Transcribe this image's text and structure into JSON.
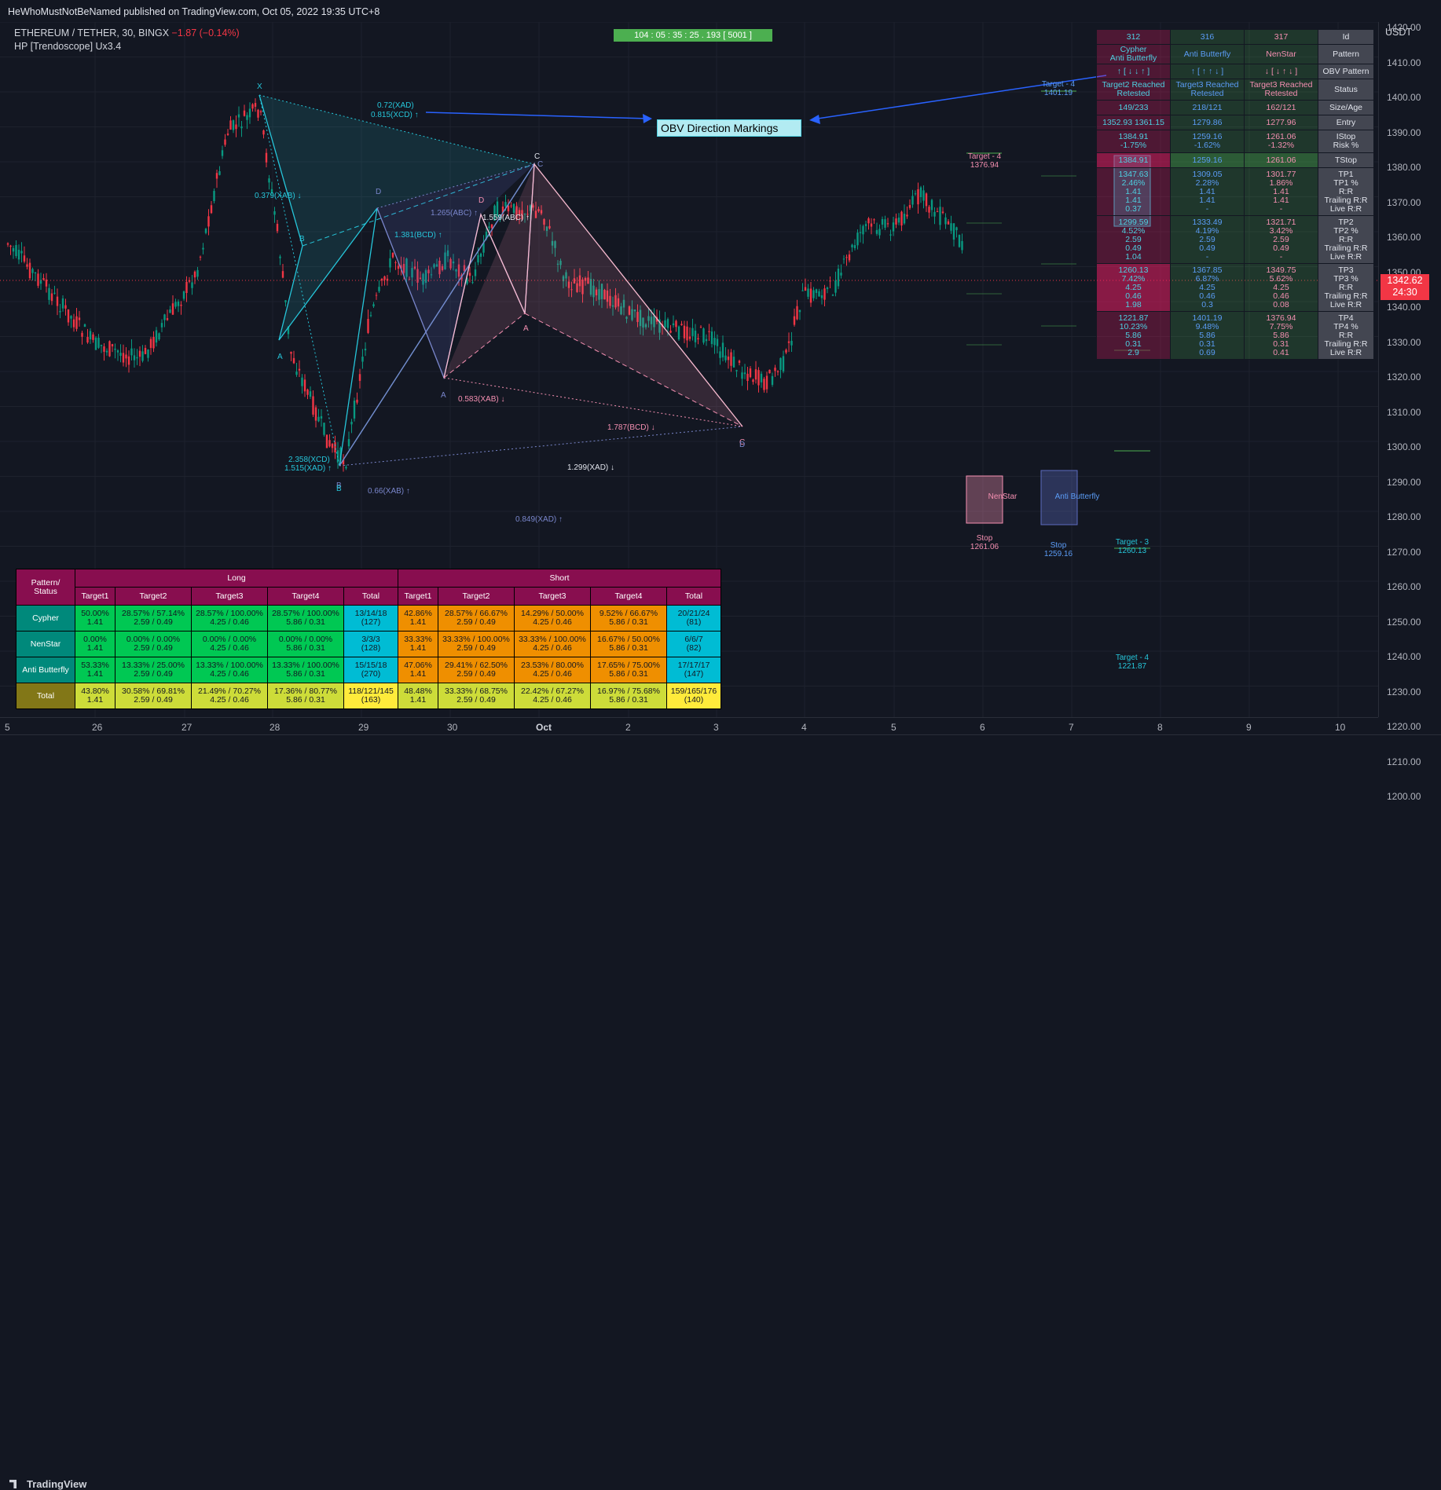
{
  "publisher": "HeWhoMustNotBeNamed published on TradingView.com, Oct 05, 2022 19:35 UTC+8",
  "symbol": {
    "name": "ETHEREUM / TETHER, 30, BINGX",
    "change": "−1.87 (−0.14%)"
  },
  "indicator_name": "HP [Trendoscope] Ux3.4",
  "timer": "104 : 05 : 35 : 25 . 193 [ 5001 ]",
  "obv_label": "OBV Direction Markings",
  "currency": "USDT",
  "price_labels": [
    "1420.00",
    "1410.00",
    "1400.00",
    "1390.00",
    "1380.00",
    "1370.00",
    "1360.00",
    "1350.00",
    "1340.00",
    "1330.00",
    "1320.00",
    "1310.00",
    "1300.00",
    "1290.00",
    "1280.00",
    "1270.00",
    "1260.00",
    "1250.00",
    "1240.00",
    "1230.00",
    "1220.00",
    "1210.00",
    "1200.00"
  ],
  "current_price": {
    "value": "1342.62",
    "countdown": "24:30"
  },
  "time_labels": [
    "5",
    "26",
    "27",
    "28",
    "29",
    "30",
    "Oct",
    "2",
    "3",
    "4",
    "5",
    "6",
    "7",
    "8",
    "9",
    "10"
  ],
  "brand": "TradingView",
  "chart_annotations": {
    "pivots": [
      "X",
      "A",
      "B",
      "C",
      "D",
      "A",
      "B",
      "C",
      "D",
      "A",
      "B",
      "C",
      "D"
    ],
    "ratios": [
      "0.72(XAD)",
      "0.815(XCD) ↑",
      "0.379(XAB) ↓",
      "1.265(ABC) ↑",
      "1.559(ABC) ↑",
      "1.381(BCD) ↑",
      "0.583(XAB) ↓",
      "1.787(BCD) ↓",
      "2.358(XCD)",
      "1.515(XAD) ↑",
      "0.66(XAB) ↑",
      "1.299(XAD) ↓",
      "0.849(XAD) ↑"
    ],
    "targets": [
      "Target - 4",
      "1401.19",
      "Target - 4",
      "1376.94",
      "Target - 3",
      "1260.13",
      "Target - 4",
      "1221.87"
    ],
    "stops": [
      "Stop",
      "1261.06",
      "Stop",
      "1259.16"
    ],
    "boxes": [
      "NenStar",
      "Anti Butterfly"
    ]
  },
  "right_table": {
    "rows": [
      {
        "c1": "312",
        "c2": "316",
        "c3": "317",
        "c4": "Id"
      },
      {
        "c1": "Cypher\nAnti Butterfly",
        "c2": "Anti Butterfly",
        "c3": "NenStar",
        "c4": "Pattern"
      },
      {
        "c1": "↑ [ ↓ ↓ ↑ ]",
        "c2": "↑ [ ↑ ↑ ↓ ]",
        "c3": "↓ [ ↓ ↑ ↓ ]",
        "c4": "OBV Pattern"
      },
      {
        "c1": "Target2 Reached\nRetested",
        "c2": "Target3 Reached\nRetested",
        "c3": "Target3 Reached\nRetested",
        "c4": "Status"
      },
      {
        "c1": "149/233",
        "c2": "218/121",
        "c3": "162/121",
        "c4": "Size/Age"
      },
      {
        "c1": "1352.93 1361.15",
        "c2": "1279.86",
        "c3": "1277.96",
        "c4": "Entry"
      },
      {
        "c1": "1384.91\n-1.75%",
        "c2": "1259.16\n-1.62%",
        "c3": "1261.06\n-1.32%",
        "c4": "IStop\nRisk %"
      },
      {
        "c1": "1384.91",
        "c2": "1259.16",
        "c3": "1261.06",
        "c4": "TStop"
      },
      {
        "c1": "1347.63\n2.46%\n1.41\n1.41\n0.37",
        "c2": "1309.05\n2.28%\n1.41\n1.41\n-",
        "c3": "1301.77\n1.86%\n1.41\n1.41\n-",
        "c4": "TP1\nTP1 %\nR:R\nTrailing R:R\nLive R:R"
      },
      {
        "c1": "1299.59\n4.52%\n2.59\n0.49\n1.04",
        "c2": "1333.49\n4.19%\n2.59\n0.49\n-",
        "c3": "1321.71\n3.42%\n2.59\n0.49\n-",
        "c4": "TP2\nTP2 %\nR:R\nTrailing R:R\nLive R:R"
      },
      {
        "c1": "1260.13\n7.42%\n4.25\n0.46\n1.98",
        "c2": "1367.85\n6.87%\n4.25\n0.46\n0.3",
        "c3": "1349.75\n5.62%\n4.25\n0.46\n0.08",
        "c4": "TP3\nTP3 %\nR:R\nTrailing R:R\nLive R:R"
      },
      {
        "c1": "1221.87\n10.23%\n5.86\n0.31\n2.9",
        "c2": "1401.19\n9.48%\n5.86\n0.31\n0.69",
        "c3": "1376.94\n7.75%\n5.86\n0.31\n0.41",
        "c4": "TP4\nTP4 %\nR:R\nTrailing R:R\nLive R:R"
      }
    ]
  },
  "stats_table": {
    "header": {
      "corner": "Pattern/\nStatus",
      "long": "Long",
      "short": "Short"
    },
    "subheaders": [
      "Target1",
      "Target2",
      "Target3",
      "Target4",
      "Total",
      "Target1",
      "Target2",
      "Target3",
      "Target4",
      "Total"
    ],
    "rows": [
      {
        "name": "Cypher",
        "cells": [
          "50.00%\n1.41",
          "28.57% / 57.14%\n2.59 / 0.49",
          "28.57% / 100.00%\n4.25 / 0.46",
          "28.57% / 100.00%\n5.86 / 0.31",
          "13/14/18\n(127)",
          "42.86%\n1.41",
          "28.57% / 66.67%\n2.59 / 0.49",
          "14.29% / 50.00%\n4.25 / 0.46",
          "9.52% / 66.67%\n5.86 / 0.31",
          "20/21/24\n(81)"
        ]
      },
      {
        "name": "NenStar",
        "cells": [
          "0.00%\n1.41",
          "0.00% / 0.00%\n2.59 / 0.49",
          "0.00% / 0.00%\n4.25 / 0.46",
          "0.00% / 0.00%\n5.86 / 0.31",
          "3/3/3\n(128)",
          "33.33%\n1.41",
          "33.33% / 100.00%\n2.59 / 0.49",
          "33.33% / 100.00%\n4.25 / 0.46",
          "16.67% / 50.00%\n5.86 / 0.31",
          "6/6/7\n(82)"
        ]
      },
      {
        "name": "Anti Butterfly",
        "cells": [
          "53.33%\n1.41",
          "13.33% / 25.00%\n2.59 / 0.49",
          "13.33% / 100.00%\n4.25 / 0.46",
          "13.33% / 100.00%\n5.86 / 0.31",
          "15/15/18\n(270)",
          "47.06%\n1.41",
          "29.41% / 62.50%\n2.59 / 0.49",
          "23.53% / 80.00%\n4.25 / 0.46",
          "17.65% / 75.00%\n5.86 / 0.31",
          "17/17/17\n(147)"
        ]
      },
      {
        "name": "Total",
        "cells": [
          "43.80%\n1.41",
          "30.58% / 69.81%\n2.59 / 0.49",
          "21.49% / 70.27%\n4.25 / 0.46",
          "17.36% / 80.77%\n5.86 / 0.31",
          "118/121/145\n(163)",
          "48.48%\n1.41",
          "33.33% / 68.75%\n2.59 / 0.49",
          "22.42% / 67.27%\n4.25 / 0.46",
          "16.97% / 75.68%\n5.86 / 0.31",
          "159/165/176\n(140)"
        ]
      }
    ]
  },
  "colors": {
    "background": "#131722",
    "up": "#089981",
    "down": "#f23645",
    "accent_blue": "#2962ff",
    "teal": "#4dd0e1",
    "pink": "#f48fb1"
  }
}
